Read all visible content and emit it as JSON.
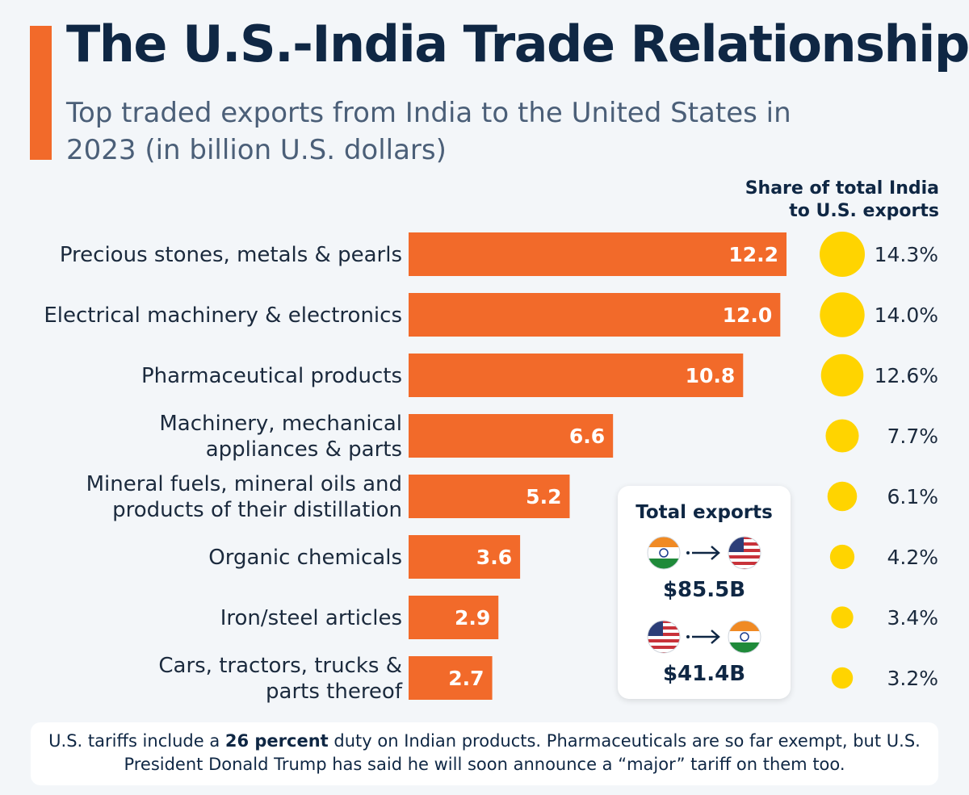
{
  "title": "The U.S.-India Trade Relationship",
  "subtitle": "Top traded exports from India to the United States in 2023 (in billion U.S. dollars)",
  "share_header": [
    "Share of total India",
    "to U.S. exports"
  ],
  "colors": {
    "accent": "#f26a2a",
    "bar": "#f26a2a",
    "bubble": "#ffd400",
    "title": "#0f2744"
  },
  "chart_data": {
    "type": "bar",
    "orientation": "horizontal",
    "categories": [
      [
        "Precious stones, metals & pearls"
      ],
      [
        "Electrical machinery & electronics"
      ],
      [
        "Pharmaceutical products"
      ],
      [
        "Machinery, mechanical",
        "appliances & parts"
      ],
      [
        "Mineral fuels, mineral oils and",
        "products of their distillation"
      ],
      [
        "Organic chemicals"
      ],
      [
        "Iron/steel articles"
      ],
      [
        "Cars, tractors, trucks &",
        "parts thereof"
      ]
    ],
    "values": [
      12.2,
      12.0,
      10.8,
      6.6,
      5.2,
      3.6,
      2.9,
      2.7
    ],
    "value_labels": [
      "12.2",
      "12.0",
      "10.8",
      "6.6",
      "5.2",
      "3.6",
      "2.9",
      "2.7"
    ],
    "share": [
      14.3,
      14.0,
      12.6,
      7.7,
      6.1,
      4.2,
      3.4,
      3.2
    ],
    "share_labels": [
      "14.3%",
      "14.0%",
      "12.6%",
      "7.7%",
      "6.1%",
      "4.2%",
      "3.4%",
      "3.2%"
    ],
    "xlim": [
      0,
      12.2
    ]
  },
  "total_box": {
    "title": "Total exports",
    "india_to_us": "$85.5B",
    "us_to_india": "$41.4B",
    "icons": [
      "india-flag-icon",
      "arrow-right-icon",
      "us-flag-icon"
    ]
  },
  "footnote": {
    "pre": "U.S. tariffs include a ",
    "bold": "26 percent",
    "post": " duty on Indian products. Pharmaceuticals are so far exempt, but U.S. President Donald Trump has said he will soon announce a “major” tariff on them too."
  }
}
